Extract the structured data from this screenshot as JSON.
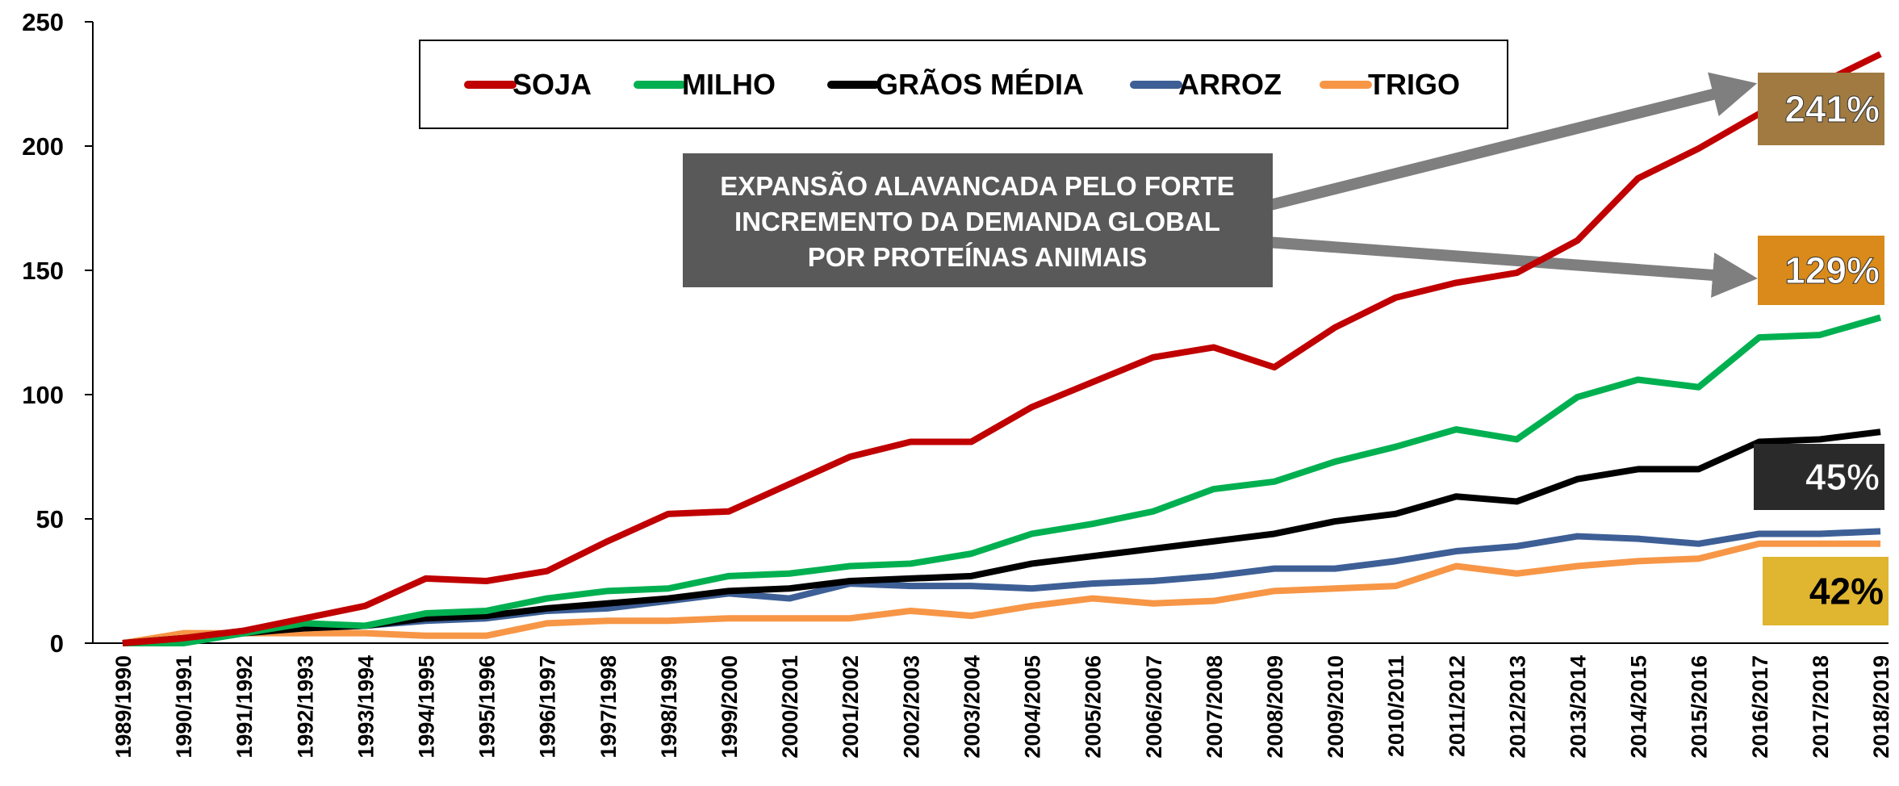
{
  "chart_data": {
    "type": "line",
    "categories": [
      "1989/1990",
      "1990/1991",
      "1991/1992",
      "1992/1993",
      "1993/1994",
      "1994/1995",
      "1995/1996",
      "1996/1997",
      "1997/1998",
      "1998/1999",
      "1999/2000",
      "2000/2001",
      "2001/2002",
      "2002/2003",
      "2003/2004",
      "2004/2005",
      "2005/2006",
      "2006/2007",
      "2007/2008",
      "2008/2009",
      "2009/2010",
      "2010/2011",
      "2011/2012",
      "2012/2013",
      "2013/2014",
      "2014/2015",
      "2015/2016",
      "2016/2017",
      "2017/2018",
      "2018/2019"
    ],
    "series": [
      {
        "name": "SOJA",
        "color": "#c00000",
        "values": [
          0,
          2,
          5,
          10,
          15,
          26,
          25,
          29,
          41,
          52,
          53,
          64,
          75,
          81,
          81,
          95,
          105,
          115,
          119,
          111,
          127,
          139,
          145,
          149,
          162,
          187,
          199,
          213,
          225,
          237
        ]
      },
      {
        "name": "MILHO",
        "color": "#00b050",
        "values": [
          0,
          0,
          4,
          8,
          7,
          12,
          13,
          18,
          21,
          22,
          27,
          28,
          31,
          32,
          36,
          44,
          48,
          53,
          62,
          65,
          73,
          79,
          86,
          82,
          99,
          106,
          103,
          123,
          124,
          131
        ]
      },
      {
        "name": "GRÃOS MÉDIA",
        "color": "#000000",
        "values": [
          0,
          2,
          4,
          6,
          7,
          10,
          11,
          14,
          16,
          18,
          21,
          22,
          25,
          26,
          27,
          32,
          35,
          38,
          41,
          44,
          49,
          52,
          59,
          57,
          66,
          70,
          70,
          81,
          82,
          85
        ]
      },
      {
        "name": "ARROZ",
        "color": "#3d5f96",
        "values": [
          0,
          2,
          5,
          6,
          7,
          9,
          10,
          13,
          14,
          17,
          20,
          18,
          24,
          23,
          23,
          22,
          24,
          25,
          27,
          30,
          30,
          33,
          37,
          39,
          43,
          42,
          40,
          44,
          44,
          45
        ]
      },
      {
        "name": "TRIGO",
        "color": "#f79646",
        "values": [
          0,
          4,
          4,
          4,
          4,
          3,
          3,
          8,
          9,
          9,
          10,
          10,
          10,
          13,
          11,
          15,
          18,
          16,
          17,
          21,
          22,
          23,
          31,
          28,
          31,
          33,
          34,
          40,
          40,
          40
        ]
      }
    ],
    "ylim": [
      0,
      250
    ],
    "yticks": [
      0,
      50,
      100,
      150,
      200,
      250
    ],
    "grid": false,
    "annotation_lines": [
      "EXPANSÃO ALAVANCADA PELO FORTE",
      "INCREMENTO DA DEMANDA GLOBAL",
      "POR PROTEÍNAS ANIMAIS"
    ],
    "callouts": [
      {
        "label": "241%",
        "color": "#a07a40"
      },
      {
        "label": "129%",
        "color": "#d98a1a"
      },
      {
        "label": "45%",
        "color": "#2a2a2a"
      },
      {
        "label": "42%",
        "color": "#e0b530"
      }
    ]
  }
}
